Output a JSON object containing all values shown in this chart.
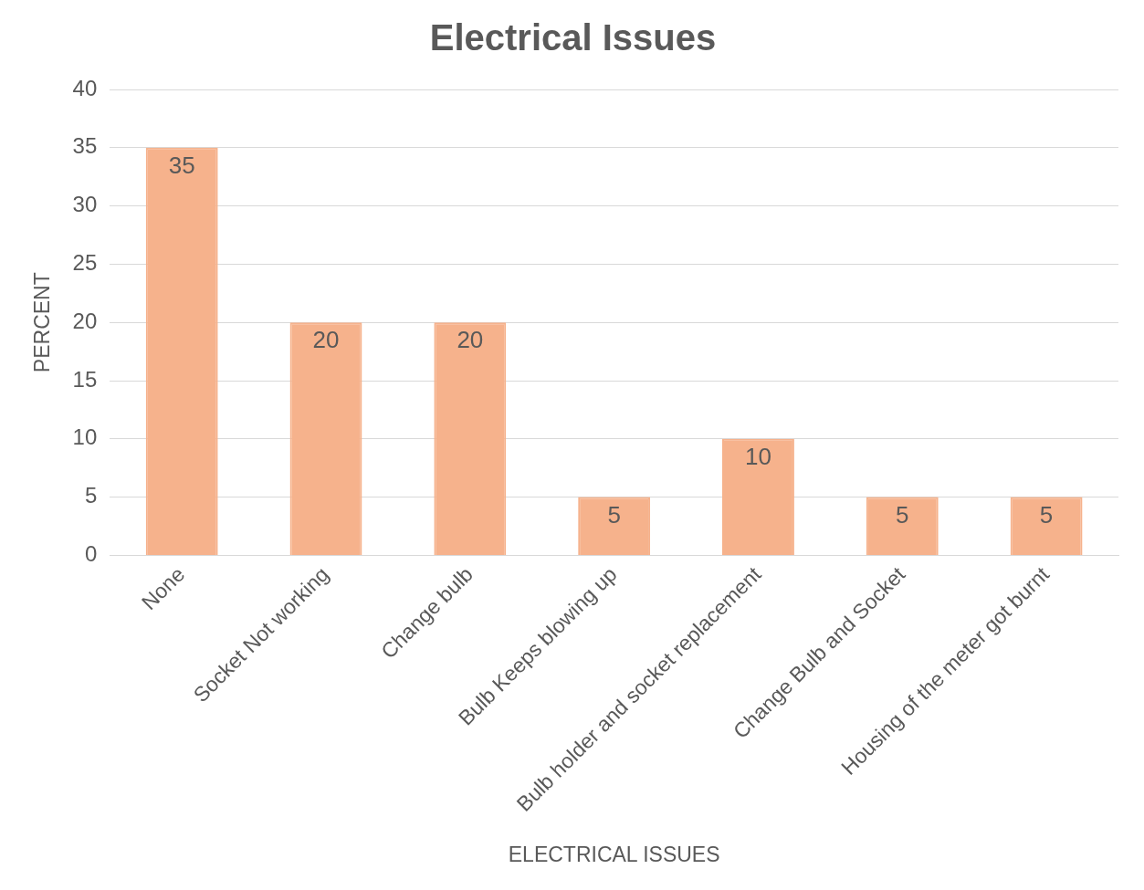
{
  "chart_data": {
    "type": "bar",
    "title": "Electrical Issues",
    "xlabel": "ELECTRICAL ISSUES",
    "ylabel": "PERCENT",
    "categories": [
      "None",
      "Socket Not working",
      "Change bulb",
      "Bulb Keeps blowing up",
      "Bulb holder and socket replacement",
      "Change Bulb and Socket",
      "Housing of the meter got burnt"
    ],
    "values": [
      35,
      20,
      20,
      5,
      10,
      5,
      5
    ],
    "color": "#f6b28c",
    "ylim": [
      0,
      40
    ],
    "yticks": [
      0,
      5,
      10,
      15,
      20,
      25,
      30,
      35,
      40
    ],
    "grid": "y",
    "data_labels": true,
    "legend": false
  }
}
